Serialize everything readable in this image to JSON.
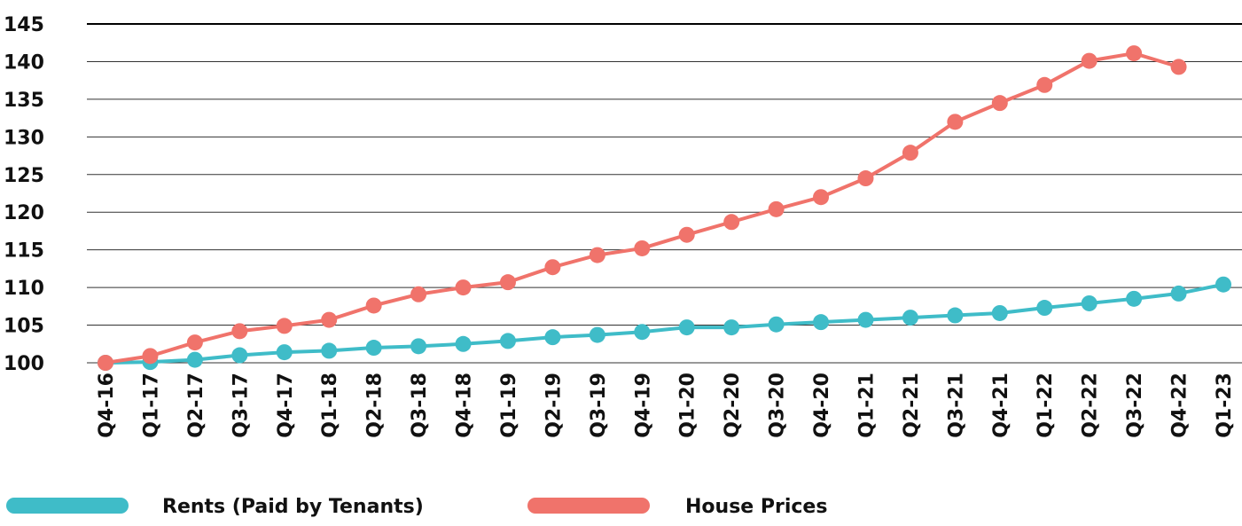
{
  "chart_data": {
    "type": "line",
    "categories": [
      "Q4-16",
      "Q1-17",
      "Q2-17",
      "Q3-17",
      "Q4-17",
      "Q1-18",
      "Q2-18",
      "Q3-18",
      "Q4-18",
      "Q1-19",
      "Q2-19",
      "Q3-19",
      "Q4-19",
      "Q1-20",
      "Q2-20",
      "Q3-20",
      "Q4-20",
      "Q1-21",
      "Q2-21",
      "Q3-21",
      "Q4-21",
      "Q1-22",
      "Q2-22",
      "Q3-22",
      "Q4-22",
      "Q1-23"
    ],
    "series": [
      {
        "name": "Rents (Paid by Tenants)",
        "color": "#3fbcc8",
        "values": [
          100,
          100.1,
          100.4,
          101.0,
          101.4,
          101.6,
          102.0,
          102.2,
          102.5,
          102.9,
          103.4,
          103.7,
          104.1,
          104.7,
          104.7,
          105.1,
          105.4,
          105.7,
          106.0,
          106.3,
          106.6,
          107.3,
          107.9,
          108.5,
          109.2,
          110.4
        ]
      },
      {
        "name": "House Prices",
        "color": "#f0736b",
        "values": [
          100,
          100.9,
          102.7,
          104.2,
          104.9,
          105.7,
          107.6,
          109.1,
          110.0,
          110.7,
          112.7,
          114.3,
          115.2,
          117.0,
          118.7,
          120.4,
          122.0,
          124.5,
          127.9,
          132.0,
          134.5,
          136.9,
          140.1,
          141.1,
          139.3,
          null
        ]
      }
    ],
    "ylim": [
      100,
      145
    ],
    "yticks": [
      100,
      105,
      110,
      115,
      120,
      125,
      130,
      135,
      140,
      145
    ],
    "grid": true
  }
}
